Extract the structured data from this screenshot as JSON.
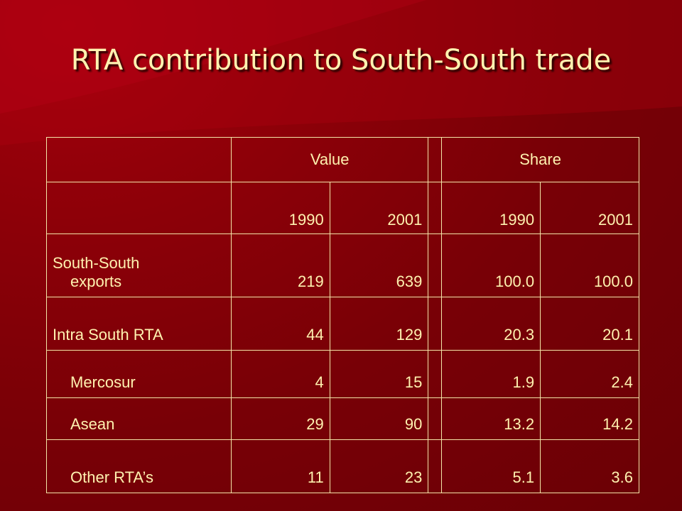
{
  "slide": {
    "title": "RTA contribution to South-South trade"
  },
  "table": {
    "group_headers": {
      "value": "Value",
      "share": "Share"
    },
    "years": [
      "1990",
      "2001",
      "1990",
      "2001"
    ],
    "rows": [
      {
        "label_line1": "South-South",
        "label_line2": "exports",
        "value_1990": "219",
        "value_2001": "639",
        "share_1990": "100.0",
        "share_2001": "100.0"
      },
      {
        "label": "Intra South RTA",
        "value_1990": "44",
        "value_2001": "129",
        "share_1990": "20.3",
        "share_2001": "20.1"
      },
      {
        "label": "Mercosur",
        "value_1990": "4",
        "value_2001": "15",
        "share_1990": "1.9",
        "share_2001": "2.4"
      },
      {
        "label": "Asean",
        "value_1990": "29",
        "value_2001": "90",
        "share_1990": "13.2",
        "share_2001": "14.2"
      },
      {
        "label": "Other RTA’s",
        "value_1990": "11",
        "value_2001": "23",
        "share_1990": "5.1",
        "share_2001": "3.6"
      }
    ]
  }
}
